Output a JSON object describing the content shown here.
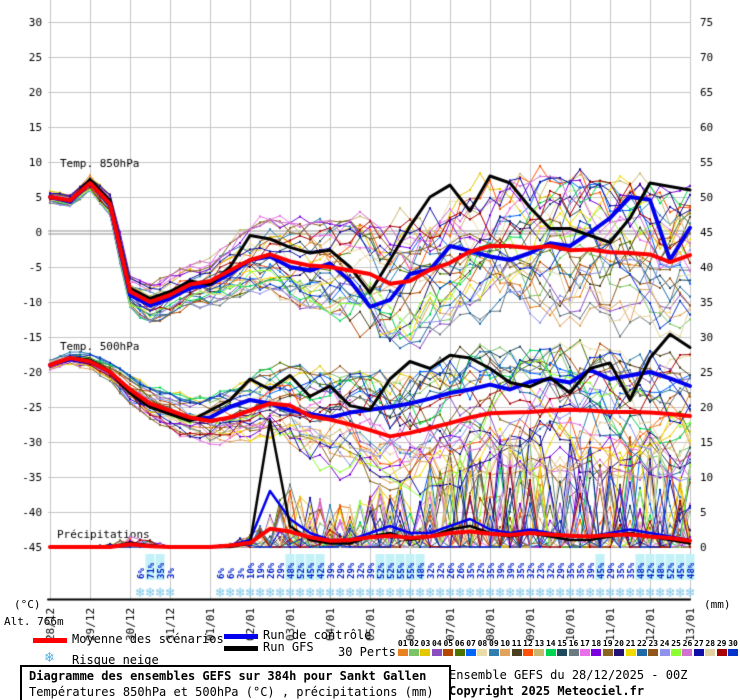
{
  "ui": {
    "axis_left_unit": "(°C)",
    "axis_right_unit": "(mm)",
    "altitude": "Alt. 766m",
    "legend": {
      "mean": "Moyenne des scénarios",
      "control": "Run de contrôle",
      "gfs": "Run GFS",
      "perts": "30 Perts.",
      "snow": "Risque neige",
      "snow_icon": "❄"
    },
    "title": "Diagramme des ensembles GEFS sur 384h pour Sankt Gallen",
    "subtitle": "Températures 850hPa et 500hPa (°C) , précipitations (mm)",
    "run_info": "Ensemble GEFS du 28/12/2025 - 00Z",
    "copyright": "Copyright 2025 Meteociel.fr"
  },
  "chart_data": {
    "type": "line",
    "title": "Diagramme des ensembles GEFS sur 384h pour Sankt Gallen",
    "hours_total": 384,
    "step_hours": 12,
    "x_dates": [
      "28/12",
      "29/12",
      "30/12",
      "31/12",
      "01/01",
      "02/01",
      "03/01",
      "04/01",
      "05/01",
      "06/01",
      "07/01",
      "08/01",
      "09/01",
      "10/01",
      "11/01",
      "12/01",
      "13/01"
    ],
    "left_axis": {
      "unit": "°C",
      "ticks": [
        30,
        25,
        20,
        15,
        10,
        5,
        0,
        -5,
        -10,
        -15,
        -20,
        -25,
        -30,
        -35,
        -40,
        -45
      ],
      "range": [
        -45,
        30
      ]
    },
    "right_axis": {
      "unit": "mm",
      "ticks": [
        75,
        70,
        65,
        60,
        55,
        50,
        45,
        40,
        35,
        30,
        25,
        20,
        15,
        10,
        5,
        0
      ],
      "range": [
        0,
        75
      ]
    },
    "sections": [
      {
        "label": "Temp. 850hPa"
      },
      {
        "label": "Temp. 500hPa"
      },
      {
        "label": "Précipitations"
      }
    ],
    "series": {
      "t850": {
        "mean": [
          5,
          4.5,
          7,
          4,
          -8.5,
          -10,
          -9,
          -7.5,
          -7,
          -5.5,
          -4,
          -3.2,
          -4.2,
          -4.8,
          -5,
          -5.5,
          -6,
          -7.4,
          -7,
          -5.4,
          -4.4,
          -2.8,
          -2,
          -2,
          -2.3,
          -2,
          -2.6,
          -2.5,
          -2.9,
          -3,
          -3.2,
          -4.3,
          -3.3
        ],
        "control": [
          5,
          4.3,
          7,
          4,
          -9,
          -10.5,
          -9.5,
          -8,
          -7.5,
          -6,
          -4,
          -3.5,
          -5,
          -5.5,
          -4.5,
          -7,
          -10.7,
          -9.7,
          -6,
          -5.4,
          -2,
          -2.7,
          -3.5,
          -4,
          -3,
          -1.6,
          -2,
          -0.1,
          2,
          5,
          4.6,
          -4,
          0.6
        ],
        "gfs": [
          5,
          4.5,
          7.5,
          4.5,
          -8,
          -9.5,
          -8.5,
          -7,
          -7.5,
          -5,
          -0.5,
          -1,
          -2.2,
          -3,
          -2.6,
          -5,
          -8.7,
          -4,
          0.8,
          5,
          6.7,
          3,
          8,
          7,
          3.5,
          0.5,
          0.5,
          -0.5,
          -1.5,
          2,
          7,
          6.5,
          6
        ],
        "ens_spread": [
          0.8,
          0.8,
          1,
          1.5,
          2,
          2.5,
          2.5,
          2.5,
          3,
          3.5,
          4,
          4.5,
          5,
          5.5,
          6,
          6.5,
          7,
          7.5,
          8,
          8,
          8,
          8,
          8.5,
          8.5,
          8.5,
          9,
          9,
          9,
          9,
          9,
          9,
          9,
          9
        ]
      },
      "t500": {
        "mean": [
          -19,
          -18,
          -18.5,
          -20,
          -22.5,
          -24.5,
          -25.5,
          -26.5,
          -27,
          -26.5,
          -25.5,
          -24.5,
          -24.8,
          -26.3,
          -26.8,
          -27.5,
          -28.3,
          -29.2,
          -28.7,
          -28,
          -27.3,
          -26.5,
          -25.9,
          -25.8,
          -25.7,
          -25.5,
          -25.4,
          -25.5,
          -25.7,
          -25.7,
          -25.8,
          -26,
          -26.3
        ],
        "control": [
          -19,
          -18.2,
          -18.5,
          -20,
          -22.8,
          -24.8,
          -25.8,
          -26.8,
          -26.5,
          -25,
          -24,
          -24.5,
          -25.5,
          -26,
          -26.5,
          -25.8,
          -25.4,
          -25,
          -24.5,
          -23.8,
          -23,
          -22.5,
          -21.8,
          -22.5,
          -21.4,
          -21,
          -21.5,
          -19.7,
          -21,
          -20.5,
          -20,
          -20.9,
          -22
        ],
        "gfs": [
          -19,
          -18,
          -18.3,
          -20,
          -23,
          -25,
          -26,
          -27,
          -25.5,
          -24,
          -21,
          -22.5,
          -20.5,
          -23.5,
          -22,
          -24.8,
          -25.4,
          -21,
          -18.5,
          -19.5,
          -17.6,
          -18,
          -19.5,
          -21.5,
          -22.1,
          -20.8,
          -23,
          -19.5,
          -18.7,
          -24,
          -18,
          -14.6,
          -16.5
        ],
        "ens_spread": [
          0.7,
          0.8,
          1,
          1.2,
          1.8,
          2,
          2.2,
          2.5,
          3,
          3.5,
          4,
          4.5,
          5,
          5.5,
          6,
          6.5,
          7,
          7,
          7.5,
          7.5,
          8,
          8,
          8,
          8,
          8,
          8,
          8,
          8,
          8,
          8,
          8,
          8,
          8
        ]
      },
      "precip": {
        "mean": [
          0,
          0,
          0,
          0,
          0.4,
          0.1,
          0,
          0,
          0,
          0.2,
          0.6,
          2.6,
          2.2,
          1.4,
          0.9,
          1,
          1.4,
          1.6,
          1.3,
          1.5,
          2,
          2.2,
          1.9,
          1.7,
          2,
          1.8,
          1.6,
          1.5,
          1.7,
          1.8,
          1.5,
          1.3,
          0.9
        ],
        "control": [
          0,
          0,
          0,
          0,
          0.4,
          0.2,
          0,
          0,
          0,
          0.3,
          1,
          8,
          4,
          2,
          1,
          1,
          2,
          3,
          2,
          2,
          3,
          4,
          2.5,
          2,
          2.5,
          2,
          1.5,
          1.5,
          2,
          2.5,
          2,
          1.5,
          1
        ],
        "gfs": [
          0,
          0,
          0,
          0,
          0.6,
          0.2,
          0,
          0,
          0,
          0,
          0.5,
          18,
          3,
          1,
          0.5,
          0.5,
          1.5,
          2,
          1,
          1.5,
          2.5,
          3,
          2,
          1.5,
          2,
          1.5,
          1,
          1,
          1.5,
          2,
          1.5,
          1,
          0.5
        ],
        "ens_max": [
          0,
          0,
          0,
          0.5,
          1.5,
          1,
          0,
          0,
          0,
          0.5,
          2,
          6,
          9,
          8,
          6,
          6,
          8,
          10,
          10,
          12,
          14,
          16,
          16,
          16,
          18,
          16,
          16,
          16,
          16,
          16,
          16,
          14,
          12
        ]
      }
    },
    "snow_columns": [
      [
        54,
        6,
        0
      ],
      [
        60,
        71,
        1
      ],
      [
        66,
        35,
        1
      ],
      [
        72,
        3,
        0
      ],
      [
        102,
        6,
        0
      ],
      [
        108,
        6,
        0
      ],
      [
        114,
        3,
        0
      ],
      [
        120,
        10,
        0
      ],
      [
        126,
        19,
        0
      ],
      [
        132,
        26,
        0
      ],
      [
        138,
        29,
        0
      ],
      [
        144,
        48,
        1
      ],
      [
        150,
        52,
        1
      ],
      [
        156,
        45,
        1
      ],
      [
        162,
        42,
        1
      ],
      [
        168,
        39,
        0
      ],
      [
        174,
        29,
        0
      ],
      [
        180,
        29,
        0
      ],
      [
        186,
        32,
        0
      ],
      [
        192,
        39,
        0
      ],
      [
        198,
        52,
        1
      ],
      [
        204,
        52,
        1
      ],
      [
        210,
        55,
        1
      ],
      [
        216,
        55,
        1
      ],
      [
        222,
        48,
        1
      ],
      [
        228,
        32,
        0
      ],
      [
        234,
        32,
        0
      ],
      [
        240,
        26,
        0
      ],
      [
        246,
        26,
        0
      ],
      [
        252,
        35,
        0
      ],
      [
        258,
        32,
        0
      ],
      [
        264,
        35,
        0
      ],
      [
        270,
        39,
        0
      ],
      [
        276,
        39,
        0
      ],
      [
        282,
        35,
        0
      ],
      [
        288,
        32,
        0
      ],
      [
        294,
        23,
        0
      ],
      [
        300,
        32,
        0
      ],
      [
        306,
        29,
        0
      ],
      [
        312,
        35,
        0
      ],
      [
        318,
        35,
        0
      ],
      [
        324,
        39,
        0
      ],
      [
        330,
        45,
        1
      ],
      [
        336,
        29,
        0
      ],
      [
        342,
        35,
        0
      ],
      [
        348,
        35,
        0
      ],
      [
        354,
        48,
        1
      ],
      [
        360,
        42,
        1
      ],
      [
        366,
        48,
        1
      ],
      [
        372,
        52,
        1
      ],
      [
        378,
        45,
        1
      ],
      [
        384,
        48,
        1
      ]
    ],
    "pert_labels": [
      "01",
      "02",
      "03",
      "04",
      "05",
      "06",
      "07",
      "08",
      "09",
      "10",
      "11",
      "12",
      "13",
      "14",
      "15",
      "16",
      "17",
      "18",
      "19",
      "20",
      "21",
      "22",
      "23",
      "24",
      "25",
      "26",
      "27",
      "28",
      "29",
      "30"
    ],
    "pert_colors": [
      "#E8821E",
      "#7CC368",
      "#E3C800",
      "#8A4FBE",
      "#B34700",
      "#4F7300",
      "#0066FF",
      "#EADCA6",
      "#2E7FB0",
      "#E0A35C",
      "#4A3F1E",
      "#FF5208",
      "#C9B871",
      "#00D455",
      "#1F4A5C",
      "#6B7A80",
      "#E96FE9",
      "#7A00E0",
      "#8A6420",
      "#241176",
      "#F2DC00",
      "#1F6AA6",
      "#92561D",
      "#8F93EC",
      "#8CFF32",
      "#D26FD2",
      "#0F0FA8",
      "#E2D2A2",
      "#A80000",
      "#0033CC"
    ],
    "colors": {
      "mean": "#FF0000",
      "control": "#0000EE",
      "gfs": "#000000",
      "percent_text": "#0022CC",
      "percent_highlight": "#C2F2F8",
      "snowflake": "#85C9EA",
      "grid": "#C6C6C6",
      "zero_line": "#8F8F8F"
    },
    "legend_position": "bottom",
    "grid": true
  }
}
